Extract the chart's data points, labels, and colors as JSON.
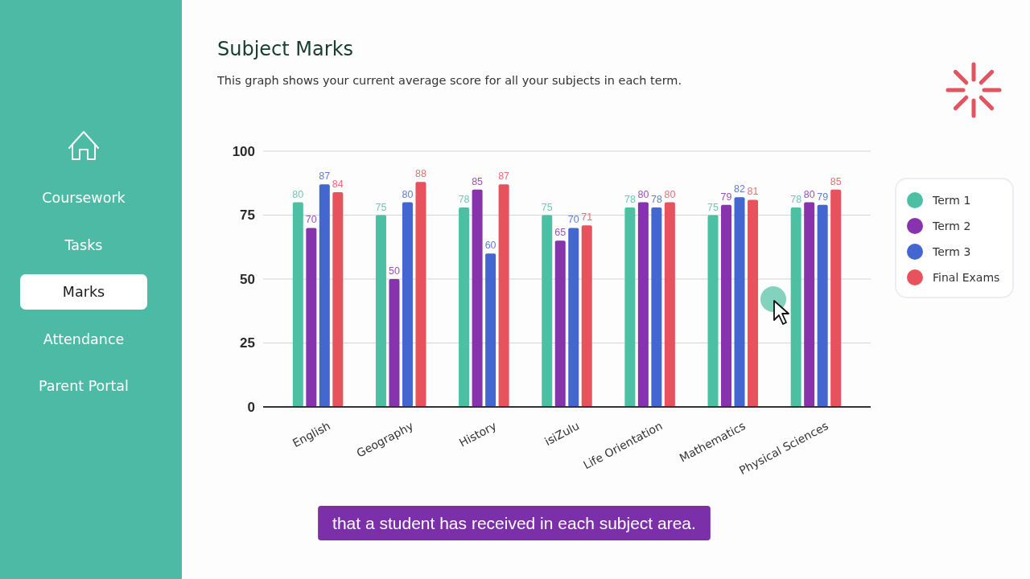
{
  "chart_data": [
    {
      "type": "bar",
      "title": "Subject Marks",
      "subtitle": "This graph shows your current average score for all your subjects in each term.",
      "categories": [
        "English",
        "Geography",
        "History",
        "isiZulu",
        "Life Orientation",
        "Mathematics",
        "Physical Sciences"
      ],
      "series": [
        {
          "name": "Term 1",
          "color": "#4dbfa3",
          "values": [
            80,
            75,
            78,
            75,
            78,
            75,
            78
          ]
        },
        {
          "name": "Term 2",
          "color": "#8633ad",
          "values": [
            70,
            50,
            85,
            65,
            80,
            79,
            80
          ]
        },
        {
          "name": "Term 3",
          "color": "#4466d0",
          "values": [
            87,
            80,
            60,
            70,
            78,
            82,
            79
          ]
        },
        {
          "name": "Final Exams",
          "color": "#e8525c",
          "values": [
            84,
            88,
            87,
            71,
            80,
            81,
            85
          ]
        }
      ],
      "ylim": [
        0,
        100
      ],
      "yticks": [
        0,
        25,
        50,
        75,
        100
      ],
      "grid": "y",
      "legend": "right",
      "data_labels": true,
      "annotations": [
        "that a student has received in each subject area."
      ]
    },
    {
      "type": "other",
      "annotations": [
        "Coursework",
        "Tasks",
        "Marks",
        "Attendance",
        "Parent Portal"
      ]
    }
  ]
}
